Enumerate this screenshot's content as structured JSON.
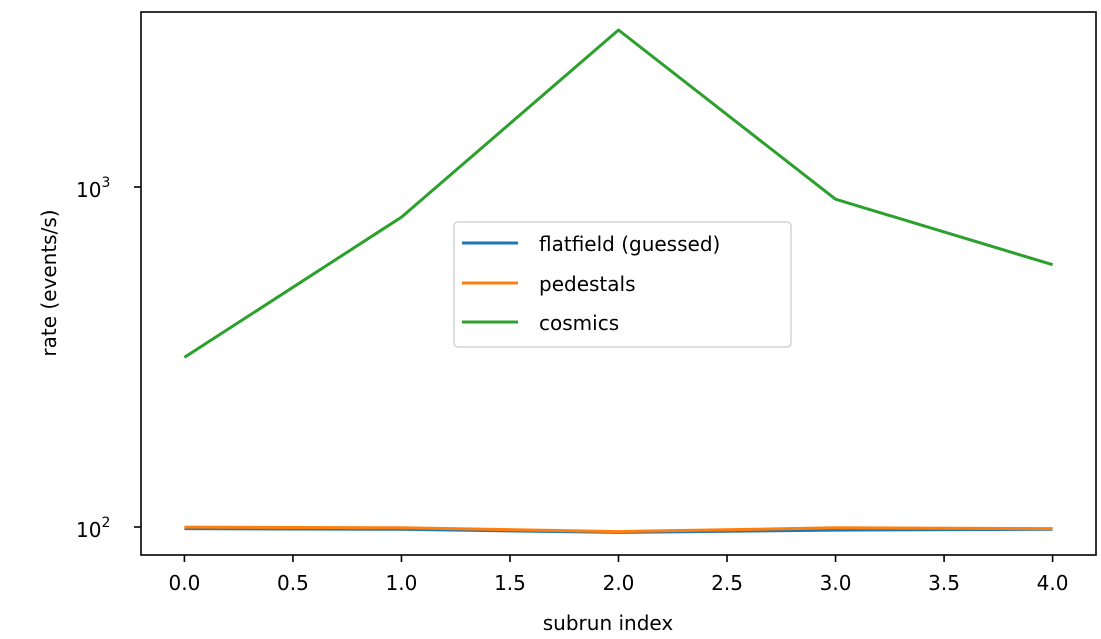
{
  "chart_data": {
    "type": "line",
    "xlabel": "subrun index",
    "ylabel": "rate (events/s)",
    "x": [
      0,
      1,
      2,
      3,
      4
    ],
    "xlim": [
      -0.2,
      4.2
    ],
    "ylim": [
      83,
      3100
    ],
    "yscale": "log",
    "grid": false,
    "legend_position": "center",
    "x_ticks": [
      "0.0",
      "0.5",
      "1.0",
      "1.5",
      "2.0",
      "2.5",
      "3.0",
      "3.5",
      "4.0"
    ],
    "y_tick_bases": [
      "10",
      "10"
    ],
    "y_tick_exponents": [
      "2",
      "3"
    ],
    "series": [
      {
        "name": "flatfield (guessed)",
        "color": "#1f77b4",
        "values": [
          99,
          98.5,
          96.5,
          98,
          98.5
        ]
      },
      {
        "name": "pedestals",
        "color": "#ff7f0e",
        "values": [
          100,
          99.5,
          97,
          99.5,
          99
        ]
      },
      {
        "name": "cosmics",
        "color": "#2ca02c",
        "values": [
          310,
          790,
          2750,
          890,
          575
        ]
      }
    ]
  }
}
